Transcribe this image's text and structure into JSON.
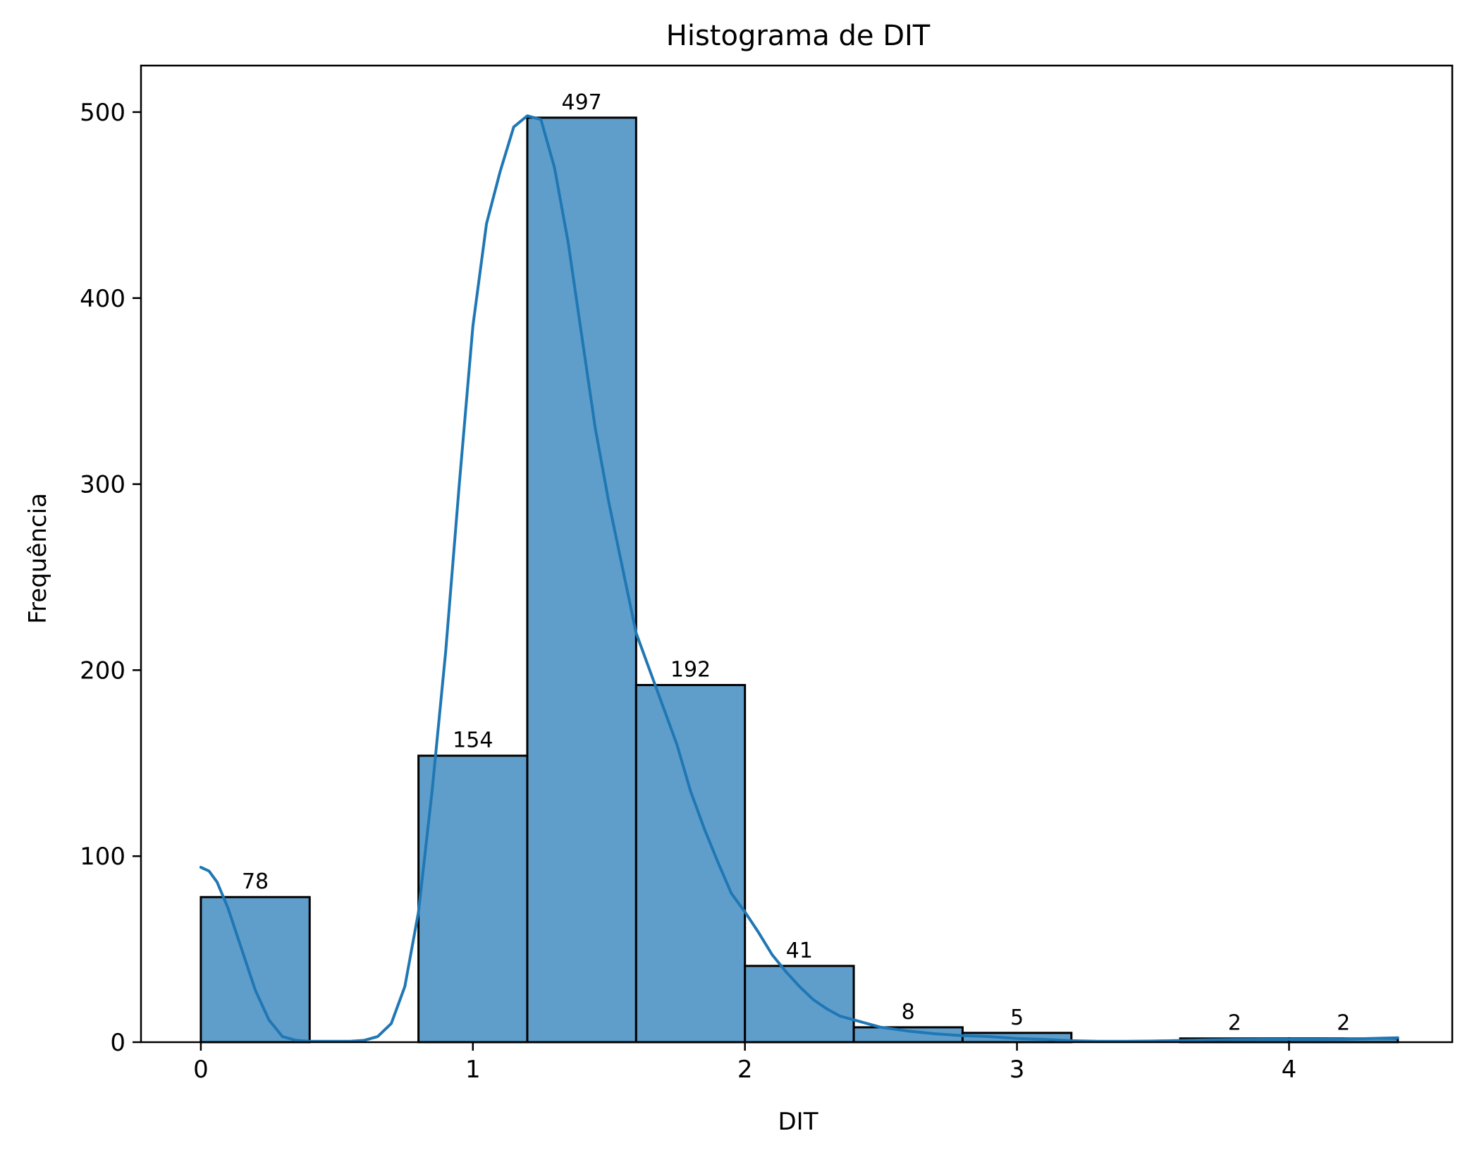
{
  "chart_data": {
    "type": "bar",
    "title": "Histograma de DIT",
    "xlabel": "DIT",
    "ylabel": "Frequência",
    "xlim": [
      -0.22,
      4.6
    ],
    "ylim": [
      0,
      525
    ],
    "xticks": [
      0,
      1,
      2,
      3,
      4
    ],
    "yticks": [
      0,
      100,
      200,
      300,
      400,
      500
    ],
    "grid": false,
    "bin_edges": [
      0.0,
      0.4,
      0.8,
      1.2,
      1.6,
      2.0,
      2.4,
      2.8,
      3.2,
      3.6,
      4.0,
      4.4
    ],
    "counts": [
      78,
      0,
      154,
      497,
      192,
      41,
      8,
      5,
      0,
      2,
      2
    ],
    "bar_labels": [
      "78",
      "",
      "154",
      "497",
      "192",
      "41",
      "8",
      "5",
      "",
      "2",
      "2"
    ],
    "kde": {
      "x": [
        0.0,
        0.03,
        0.06,
        0.1,
        0.15,
        0.2,
        0.25,
        0.3,
        0.35,
        0.4,
        0.45,
        0.5,
        0.55,
        0.6,
        0.65,
        0.7,
        0.75,
        0.8,
        0.85,
        0.9,
        0.95,
        1.0,
        1.05,
        1.1,
        1.15,
        1.2,
        1.25,
        1.3,
        1.35,
        1.4,
        1.45,
        1.5,
        1.55,
        1.6,
        1.65,
        1.7,
        1.75,
        1.8,
        1.85,
        1.9,
        1.95,
        2.0,
        2.05,
        2.1,
        2.15,
        2.2,
        2.25,
        2.3,
        2.35,
        2.4,
        2.5,
        2.6,
        2.7,
        2.8,
        2.9,
        3.0,
        3.1,
        3.2,
        3.3,
        3.4,
        3.5,
        3.6,
        3.7,
        3.8,
        3.9,
        4.0,
        4.1,
        4.2,
        4.3,
        4.4
      ],
      "y": [
        94,
        92,
        86,
        72,
        50,
        28,
        12,
        3,
        1,
        0.5,
        0.5,
        0.5,
        0.5,
        1,
        3,
        10,
        30,
        70,
        135,
        210,
        300,
        385,
        440,
        468,
        492,
        498,
        496,
        470,
        430,
        380,
        330,
        290,
        255,
        220,
        200,
        180,
        160,
        135,
        115,
        97,
        80,
        70,
        59,
        47,
        38,
        30,
        23,
        18,
        14,
        12,
        8,
        6,
        4.5,
        3.5,
        3,
        2,
        1.5,
        0.8,
        0.5,
        0.5,
        0.6,
        0.9,
        1.2,
        1.4,
        1.5,
        1.5,
        1.5,
        1.6,
        2.0,
        2.4
      ]
    },
    "colors": {
      "bar_fill": "#5f9ecb",
      "bar_edge": "#000000",
      "kde_line": "#1f77b4",
      "axes": "#000000"
    }
  }
}
